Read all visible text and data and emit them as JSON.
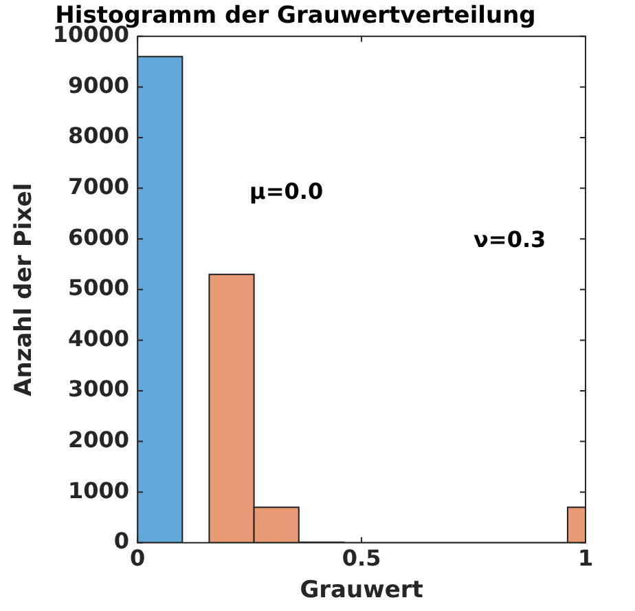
{
  "chart_data": {
    "type": "histogram",
    "title": "Histogramm der Grauwertverteilung",
    "xlabel": "Grauwert",
    "ylabel": "Anzahl der Pixel",
    "bins": [
      0,
      0.1,
      0.16,
      0.26,
      0.36,
      0.46,
      0.96,
      1.0
    ],
    "series": [
      {
        "color": "#62a8d9",
        "values": [
          9600,
          null,
          null,
          null,
          null,
          null,
          null
        ]
      },
      {
        "color": "#e89a74",
        "values": [
          null,
          null,
          5300,
          700,
          10,
          0,
          700
        ]
      }
    ],
    "xlim": [
      0,
      1
    ],
    "xticks": [
      0,
      0.5,
      1
    ],
    "ylim": [
      0,
      10000
    ],
    "yticks": [
      0,
      1000,
      2000,
      3000,
      4000,
      5000,
      6000,
      7000,
      8000,
      9000,
      10000
    ],
    "annotations": [
      "μ=0.0",
      "ν=0.3"
    ],
    "grid": false,
    "legend": false
  }
}
